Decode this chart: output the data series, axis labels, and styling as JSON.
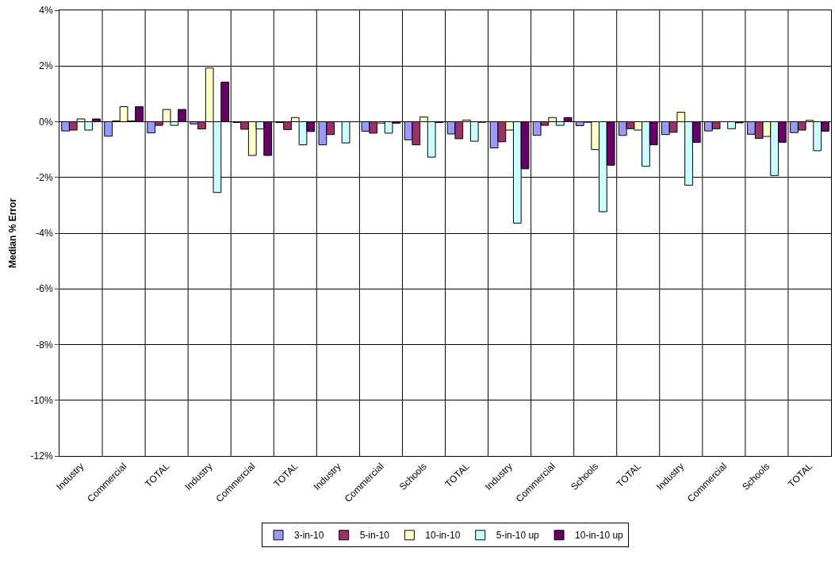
{
  "chart_data": {
    "type": "bar",
    "ylabel": "Median % Error",
    "categories": [
      "Industry",
      "Commercial",
      "TOTAL",
      "Industry",
      "Commercial",
      "TOTAL",
      "Industry",
      "Commercial",
      "Schools",
      "TOTAL",
      "Industry",
      "Commercial",
      "Schools",
      "TOTAL",
      "Industry",
      "Commercial",
      "Schools",
      "TOTAL"
    ],
    "series": [
      {
        "name": "3-in-10",
        "color": "#9999ff",
        "values": [
          -0.33,
          -0.52,
          -0.4,
          -0.08,
          -0.03,
          -0.03,
          -0.83,
          -0.34,
          -0.65,
          -0.44,
          -0.94,
          -0.49,
          -0.14,
          -0.49,
          -0.46,
          -0.33,
          -0.45,
          -0.39
        ]
      },
      {
        "name": "5-in-10",
        "color": "#993366",
        "values": [
          -0.3,
          0.03,
          -0.13,
          -0.26,
          -0.27,
          -0.28,
          -0.46,
          -0.41,
          -0.83,
          -0.61,
          -0.72,
          -0.13,
          -0.02,
          -0.25,
          -0.38,
          -0.25,
          -0.6,
          -0.3
        ]
      },
      {
        "name": "10-in-10",
        "color": "#ffffcc",
        "values": [
          0.1,
          0.54,
          0.44,
          1.93,
          -1.21,
          0.15,
          null,
          -0.05,
          0.17,
          0.06,
          -0.3,
          0.15,
          -1.0,
          -0.3,
          0.34,
          null,
          -0.53,
          0.05
        ]
      },
      {
        "name": "5-in-10 up",
        "color": "#ccffff",
        "values": [
          -0.3,
          0.03,
          -0.13,
          -2.54,
          -0.26,
          -0.83,
          -0.76,
          -0.41,
          -1.27,
          -0.7,
          -3.64,
          -0.13,
          -3.23,
          -1.6,
          -2.28,
          -0.25,
          -1.93,
          -1.04
        ]
      },
      {
        "name": "10-in-10 up",
        "color": "#660066",
        "values": [
          0.1,
          0.54,
          0.44,
          1.42,
          -1.21,
          -0.35,
          null,
          -0.05,
          -0.03,
          -0.02,
          -1.69,
          0.15,
          -1.56,
          -0.83,
          -0.74,
          -0.04,
          -0.74,
          -0.34
        ]
      }
    ],
    "ylim": [
      -12,
      4
    ],
    "yticks": [
      {
        "value": -12,
        "label": "-12%"
      },
      {
        "value": -10,
        "label": "-10%"
      },
      {
        "value": -8,
        "label": "-8%"
      },
      {
        "value": -6,
        "label": "-6%"
      },
      {
        "value": -4,
        "label": "-4%"
      },
      {
        "value": -2,
        "label": "-2%"
      },
      {
        "value": 0,
        "label": "0%"
      },
      {
        "value": 2,
        "label": "2%"
      },
      {
        "value": 4,
        "label": "4%"
      }
    ],
    "grid": true,
    "legend": "bottom"
  }
}
